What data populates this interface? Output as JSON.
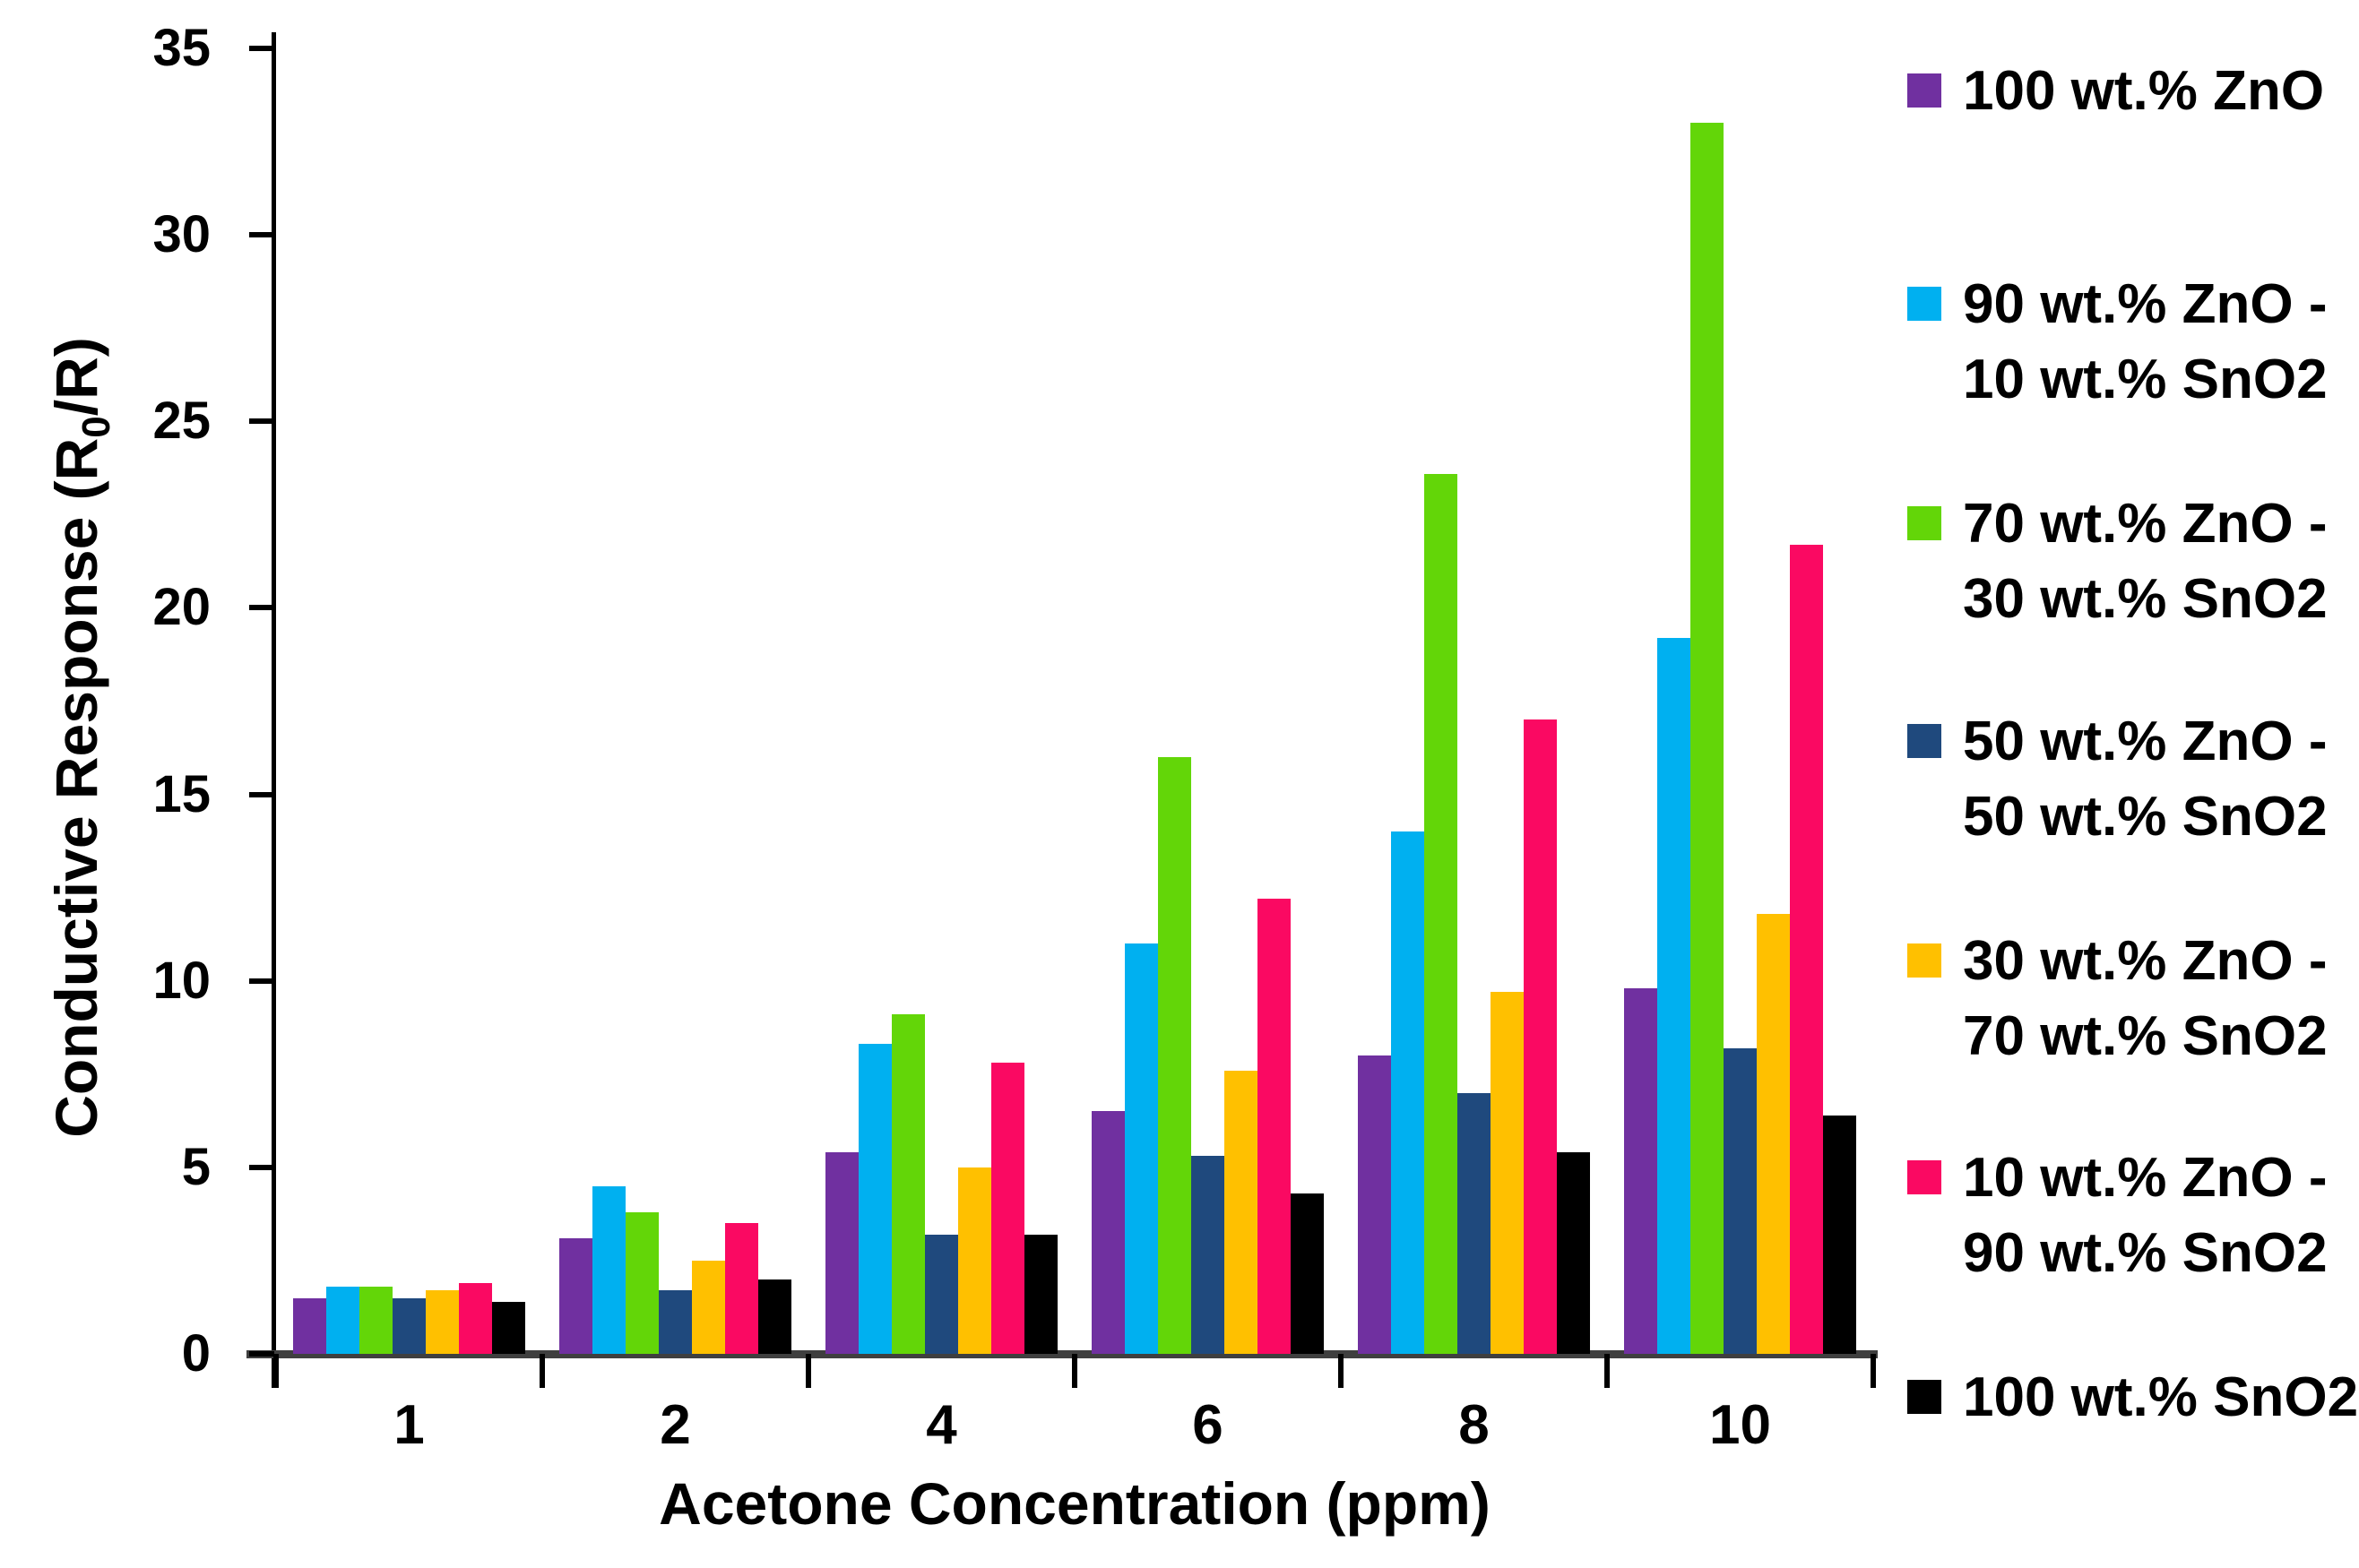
{
  "chart_data": {
    "type": "bar",
    "title": "",
    "xlabel": "Acetone Concentration (ppm)",
    "ylabel": "Conductive Response (R0/R)",
    "ylabel_parts": {
      "pre": "Conductive Response (R",
      "sub": "0",
      "post": "/R)"
    },
    "categories": [
      "1",
      "2",
      "4",
      "6",
      "8",
      "10"
    ],
    "ylim": [
      0,
      35
    ],
    "yticks": [
      "0",
      "5",
      "10",
      "15",
      "20",
      "25",
      "30",
      "35"
    ],
    "grid": false,
    "legend_position": "right",
    "background_color": "#ffffff",
    "axis_color": "#000000",
    "series": [
      {
        "name": "100 wt.% ZnO",
        "legend_lines": [
          "100 wt.% ZnO"
        ],
        "color": "#7030A0",
        "values": [
          1.5,
          3.1,
          5.4,
          6.5,
          8.0,
          9.8
        ]
      },
      {
        "name": "90 wt.% ZnO - 10 wt.% SnO2",
        "legend_lines": [
          "90 wt.% ZnO -",
          "10 wt.% SnO2"
        ],
        "color": "#00B0F0",
        "values": [
          1.8,
          4.5,
          8.3,
          11.0,
          14.0,
          19.2
        ]
      },
      {
        "name": "70 wt.% ZnO - 30 wt.% SnO2",
        "legend_lines": [
          "70 wt.% ZnO -",
          "30 wt.% SnO2"
        ],
        "color": "#63D608",
        "values": [
          1.8,
          3.8,
          9.1,
          16.0,
          23.6,
          33.0
        ]
      },
      {
        "name": "50 wt.% ZnO - 50 wt.% SnO2",
        "legend_lines": [
          "50 wt.% ZnO -",
          "50 wt.% SnO2"
        ],
        "color": "#1F497D",
        "values": [
          1.5,
          1.7,
          3.2,
          5.3,
          7.0,
          8.2
        ]
      },
      {
        "name": "30 wt.% ZnO - 70 wt.% SnO2",
        "legend_lines": [
          "30 wt.% ZnO -",
          "70 wt.% SnO2"
        ],
        "color": "#FFC000",
        "values": [
          1.7,
          2.5,
          5.0,
          7.6,
          9.7,
          11.8
        ]
      },
      {
        "name": "10 wt.% ZnO - 90 wt.% SnO2",
        "legend_lines": [
          "10 wt.% ZnO -",
          "90 wt.% SnO2"
        ],
        "color": "#FA0962",
        "values": [
          1.9,
          3.5,
          7.8,
          12.2,
          17.0,
          21.7
        ]
      },
      {
        "name": "100 wt.% SnO2",
        "legend_lines": [
          "100 wt.% SnO2"
        ],
        "color": "#000000",
        "values": [
          1.4,
          2.0,
          3.2,
          4.3,
          5.4,
          6.4
        ]
      }
    ]
  }
}
